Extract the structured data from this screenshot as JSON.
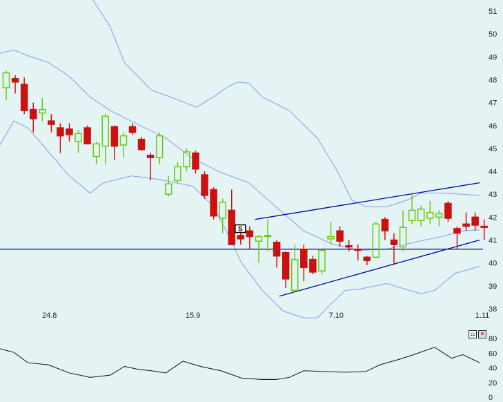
{
  "chart_data": [
    {
      "type": "candlestick",
      "y_ticks": [
        "51",
        "50",
        "49",
        "48",
        "47",
        "46",
        "45",
        "44",
        "43",
        "42",
        "41",
        "40",
        "39",
        "38"
      ],
      "ylim": [
        38,
        51
      ],
      "x_tick_labels": [
        {
          "label": "24.8",
          "index": 4.8
        },
        {
          "label": "15.9",
          "index": 20.7
        },
        {
          "label": "7.10",
          "index": 36.6
        },
        {
          "label": "1.11",
          "index": 52.8
        }
      ],
      "colors": {
        "up": "#66cc11",
        "down": "#cc1111",
        "bands": "#8899ee",
        "lines": "#0000aa"
      },
      "candles": [
        [
          47.65,
          48.4,
          47.1,
          48.3
        ],
        [
          48.05,
          48.2,
          47.4,
          47.9
        ],
        [
          47.8,
          48.1,
          46.5,
          46.65
        ],
        [
          46.7,
          47.0,
          45.7,
          46.3
        ],
        [
          46.55,
          47.2,
          46.2,
          46.7
        ],
        [
          46.2,
          46.5,
          45.7,
          46.05
        ],
        [
          45.9,
          46.1,
          44.8,
          45.55
        ],
        [
          45.85,
          46.1,
          45.3,
          45.6
        ],
        [
          45.3,
          45.8,
          44.8,
          45.65
        ],
        [
          45.9,
          46.0,
          45.2,
          45.2
        ],
        [
          44.65,
          45.3,
          44.3,
          45.2
        ],
        [
          45.1,
          46.5,
          44.3,
          46.4
        ],
        [
          45.95,
          46.0,
          44.5,
          45.1
        ],
        [
          45.15,
          45.7,
          44.6,
          45.55
        ],
        [
          45.95,
          46.1,
          45.6,
          45.7
        ],
        [
          45.4,
          45.5,
          44.9,
          44.95
        ],
        [
          44.7,
          44.8,
          43.6,
          44.6
        ],
        [
          44.6,
          45.7,
          44.3,
          45.55
        ],
        [
          43.0,
          43.8,
          42.9,
          43.45
        ],
        [
          43.6,
          44.4,
          43.5,
          44.2
        ],
        [
          44.2,
          45.0,
          44.0,
          44.85
        ],
        [
          44.8,
          44.9,
          43.9,
          44.1
        ],
        [
          43.85,
          44.0,
          42.8,
          42.95
        ],
        [
          43.2,
          43.3,
          41.9,
          42.05
        ],
        [
          41.95,
          42.8,
          41.3,
          42.65
        ],
        [
          42.3,
          43.2,
          40.8,
          40.8
        ],
        [
          41.2,
          41.6,
          40.8,
          41.05
        ],
        [
          41.4,
          41.6,
          40.6,
          41.15
        ],
        [
          40.95,
          41.2,
          40.0,
          41.15
        ],
        [
          41.2,
          41.9,
          40.5,
          41.2
        ],
        [
          40.9,
          41.0,
          39.8,
          40.3
        ],
        [
          40.45,
          40.5,
          38.9,
          39.3
        ],
        [
          38.8,
          40.8,
          38.8,
          40.15
        ],
        [
          40.6,
          40.8,
          39.2,
          39.8
        ],
        [
          40.15,
          40.3,
          39.5,
          39.6
        ],
        [
          39.65,
          40.6,
          39.5,
          40.55
        ],
        [
          41.05,
          41.8,
          40.8,
          41.15
        ],
        [
          41.4,
          41.6,
          40.7,
          40.95
        ],
        [
          40.75,
          41.0,
          40.5,
          40.7
        ],
        [
          40.6,
          40.8,
          40.1,
          40.55
        ],
        [
          40.25,
          40.3,
          39.9,
          40.1
        ],
        [
          40.25,
          41.8,
          40.2,
          41.7
        ],
        [
          41.9,
          42.0,
          41.0,
          41.4
        ],
        [
          41.0,
          41.3,
          39.9,
          40.8
        ],
        [
          40.7,
          42.3,
          40.5,
          41.55
        ],
        [
          41.85,
          43.0,
          41.7,
          42.3
        ],
        [
          41.85,
          42.5,
          41.6,
          42.35
        ],
        [
          41.95,
          42.7,
          41.7,
          42.2
        ],
        [
          42.0,
          42.3,
          41.6,
          42.15
        ],
        [
          42.6,
          42.7,
          41.8,
          41.95
        ],
        [
          41.5,
          41.6,
          40.6,
          41.3
        ],
        [
          41.7,
          42.2,
          41.4,
          41.6
        ],
        [
          42.0,
          42.2,
          41.4,
          41.65
        ],
        [
          41.6,
          41.9,
          41.0,
          41.55
        ]
      ],
      "candle_fields": [
        "open",
        "high",
        "low",
        "close"
      ],
      "bands": {
        "upper": [
          [
            9.6,
            51.5
          ],
          [
            11.55,
            50.3
          ],
          [
            13.1,
            48.75
          ],
          [
            16.1,
            47.55
          ],
          [
            19.2,
            47.1
          ],
          [
            21.1,
            46.8
          ],
          [
            23.0,
            47.25
          ],
          [
            24.6,
            47.7
          ],
          [
            25.7,
            47.9
          ],
          [
            26.9,
            47.85
          ],
          [
            28.4,
            47.25
          ],
          [
            31.4,
            46.65
          ],
          [
            34.5,
            45.45
          ],
          [
            36.8,
            43.95
          ],
          [
            38.3,
            42.75
          ],
          [
            39.9,
            42.45
          ],
          [
            42.2,
            42.45
          ],
          [
            44.5,
            42.75
          ],
          [
            46.0,
            43.05
          ],
          [
            48.3,
            43.05
          ],
          [
            52.5,
            42.95
          ]
        ],
        "middle": [
          [
            -0.7,
            49.15
          ],
          [
            0.85,
            49.3
          ],
          [
            2.4,
            49.05
          ],
          [
            4.7,
            48.75
          ],
          [
            7.0,
            48.15
          ],
          [
            9.3,
            47.25
          ],
          [
            11.55,
            46.65
          ],
          [
            14.6,
            46.05
          ],
          [
            17.7,
            45.45
          ],
          [
            20.7,
            44.55
          ],
          [
            23.8,
            43.95
          ],
          [
            26.9,
            43.5
          ],
          [
            29.9,
            42.45
          ],
          [
            33.0,
            41.4
          ],
          [
            36.0,
            40.85
          ],
          [
            39.1,
            40.55
          ],
          [
            42.2,
            40.6
          ],
          [
            45.2,
            40.9
          ],
          [
            48.3,
            41.15
          ],
          [
            50.6,
            41.4
          ],
          [
            52.5,
            41.45
          ]
        ],
        "lower": [
          [
            -0.7,
            45.15
          ],
          [
            0.85,
            46.2
          ],
          [
            2.4,
            45.9
          ],
          [
            4.7,
            44.85
          ],
          [
            7.0,
            43.8
          ],
          [
            9.3,
            43.05
          ],
          [
            10.8,
            43.5
          ],
          [
            13.85,
            43.8
          ],
          [
            16.9,
            43.65
          ],
          [
            20.7,
            43.35
          ],
          [
            23.0,
            42.45
          ],
          [
            24.6,
            41.25
          ],
          [
            26.1,
            40.0
          ],
          [
            28.4,
            38.8
          ],
          [
            30.7,
            37.9
          ],
          [
            33.0,
            37.6
          ],
          [
            34.5,
            37.6
          ],
          [
            36.0,
            38.2
          ],
          [
            37.6,
            38.8
          ],
          [
            39.1,
            38.85
          ],
          [
            42.2,
            39.1
          ],
          [
            46.0,
            38.65
          ],
          [
            47.5,
            38.8
          ],
          [
            49.8,
            39.55
          ],
          [
            52.5,
            39.85
          ]
        ]
      },
      "trend_lines": [
        [
          [
            27.6,
            41.9
          ],
          [
            52.5,
            43.5
          ]
        ],
        [
          [
            30.3,
            38.55
          ],
          [
            52.5,
            41.0
          ]
        ]
      ],
      "horizontal_line": 40.6,
      "marker": {
        "index": 26,
        "price": 41.3,
        "label": "S"
      }
    },
    {
      "type": "line",
      "y_ticks": [
        "80",
        "60",
        "40",
        "20",
        "0"
      ],
      "ylim": [
        0,
        80
      ],
      "threshold": 25,
      "fill_color": "#88cc22",
      "points": [
        [
          -0.7,
          66
        ],
        [
          0.85,
          61
        ],
        [
          2.4,
          47
        ],
        [
          4.7,
          44
        ],
        [
          7.0,
          33
        ],
        [
          9.3,
          27
        ],
        [
          11.55,
          30
        ],
        [
          13.1,
          42
        ],
        [
          14.6,
          38
        ],
        [
          16.1,
          36
        ],
        [
          17.7,
          33
        ],
        [
          19.6,
          49
        ],
        [
          21.5,
          42
        ],
        [
          23.8,
          36
        ],
        [
          26.1,
          26
        ],
        [
          28.4,
          24
        ],
        [
          29.9,
          24
        ],
        [
          31.4,
          27
        ],
        [
          33.0,
          36
        ],
        [
          35.3,
          35
        ],
        [
          37.6,
          34
        ],
        [
          39.9,
          35
        ],
        [
          41.4,
          44
        ],
        [
          43.7,
          52
        ],
        [
          45.2,
          58
        ],
        [
          47.5,
          68
        ],
        [
          49.4,
          53
        ],
        [
          50.6,
          58
        ],
        [
          52.5,
          47
        ]
      ]
    }
  ],
  "controls": {
    "settings_icon": "indicator-settings-icon",
    "close_icon": "close-icon",
    "settings_glyph": "⚏",
    "close_glyph": "✕"
  }
}
